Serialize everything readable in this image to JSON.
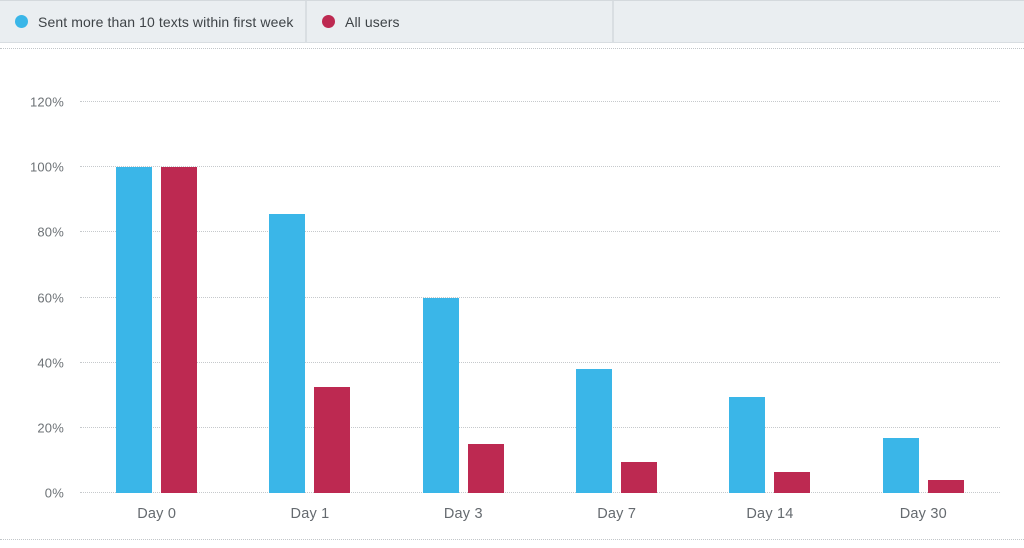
{
  "legend": {
    "items": [
      {
        "label": "Sent more than 10 texts within first week",
        "color": "#3ab6e8"
      },
      {
        "label": "All users",
        "color": "#bd2951"
      }
    ]
  },
  "chart_data": {
    "type": "bar",
    "title": "",
    "categories": [
      "Day 0",
      "Day 1",
      "Day 3",
      "Day 7",
      "Day 14",
      "Day 30"
    ],
    "series": [
      {
        "name": "Sent more than 10 texts within first week",
        "color": "#3ab6e8",
        "values": [
          100,
          85.5,
          60,
          38,
          29.5,
          17
        ]
      },
      {
        "name": "All users",
        "color": "#bd2951",
        "values": [
          100,
          32.5,
          15,
          9.5,
          6.5,
          4
        ]
      }
    ],
    "ylim": [
      0,
      120
    ],
    "yticks": [
      0,
      20,
      40,
      60,
      80,
      100,
      120
    ],
    "ytick_suffix": "%",
    "grid": "horizontal-dotted",
    "legend_position": "top"
  }
}
